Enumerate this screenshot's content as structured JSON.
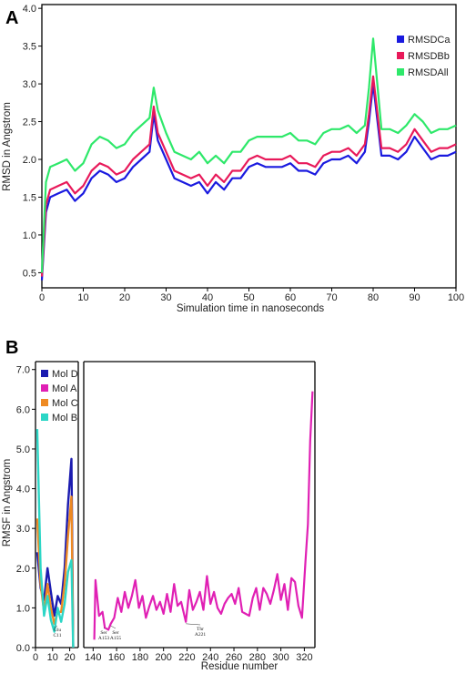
{
  "chart_data": [
    {
      "panel": "A",
      "type": "line",
      "xlabel": "Simulation time in nanoseconds",
      "ylabel": "RMSD in Angstrom",
      "xlim": [
        0,
        100
      ],
      "ylim": [
        0.3,
        4.05
      ],
      "xticks": [
        "0",
        "10",
        "20",
        "30",
        "40",
        "50",
        "60",
        "70",
        "80",
        "90",
        "100"
      ],
      "yticks": [
        "0.5",
        "1.0",
        "1.5",
        "2.0",
        "2.5",
        "3.0",
        "3.5",
        "4.0"
      ],
      "legend_position": "top-right",
      "series": [
        {
          "name": "RMSDCa",
          "color": "#1a1adf",
          "x": [
            0,
            1,
            2,
            4,
            6,
            8,
            10,
            12,
            14,
            16,
            18,
            20,
            22,
            24,
            26,
            27,
            28,
            30,
            32,
            34,
            36,
            38,
            40,
            42,
            44,
            46,
            48,
            50,
            52,
            54,
            56,
            58,
            60,
            62,
            64,
            66,
            68,
            70,
            72,
            74,
            76,
            78,
            79,
            80,
            82,
            84,
            86,
            88,
            90,
            92,
            94,
            96,
            98,
            100
          ],
          "y": [
            0.4,
            1.3,
            1.5,
            1.55,
            1.6,
            1.45,
            1.55,
            1.75,
            1.85,
            1.8,
            1.7,
            1.75,
            1.9,
            2.0,
            2.1,
            2.6,
            2.25,
            2.0,
            1.75,
            1.7,
            1.65,
            1.7,
            1.55,
            1.7,
            1.6,
            1.75,
            1.75,
            1.9,
            1.95,
            1.9,
            1.9,
            1.9,
            1.95,
            1.85,
            1.85,
            1.8,
            1.95,
            2.0,
            2.0,
            2.05,
            1.95,
            2.1,
            2.5,
            3.0,
            2.05,
            2.05,
            2.0,
            2.1,
            2.3,
            2.15,
            2.0,
            2.05,
            2.05,
            2.1
          ]
        },
        {
          "name": "RMSDBb",
          "color": "#e8195a",
          "x": [
            0,
            1,
            2,
            4,
            6,
            8,
            10,
            12,
            14,
            16,
            18,
            20,
            22,
            24,
            26,
            27,
            28,
            30,
            32,
            34,
            36,
            38,
            40,
            42,
            44,
            46,
            48,
            50,
            52,
            54,
            56,
            58,
            60,
            62,
            64,
            66,
            68,
            70,
            72,
            74,
            76,
            78,
            79,
            80,
            82,
            84,
            86,
            88,
            90,
            92,
            94,
            96,
            98,
            100
          ],
          "y": [
            0.45,
            1.4,
            1.6,
            1.65,
            1.7,
            1.55,
            1.65,
            1.85,
            1.95,
            1.9,
            1.8,
            1.85,
            2.0,
            2.1,
            2.2,
            2.7,
            2.35,
            2.1,
            1.85,
            1.8,
            1.75,
            1.8,
            1.65,
            1.8,
            1.7,
            1.85,
            1.85,
            2.0,
            2.05,
            2.0,
            2.0,
            2.0,
            2.05,
            1.95,
            1.95,
            1.9,
            2.05,
            2.1,
            2.1,
            2.15,
            2.05,
            2.2,
            2.6,
            3.1,
            2.15,
            2.15,
            2.1,
            2.2,
            2.4,
            2.25,
            2.1,
            2.15,
            2.15,
            2.2
          ]
        },
        {
          "name": "RMSDAll",
          "color": "#2ee86a",
          "x": [
            0,
            1,
            2,
            4,
            6,
            8,
            10,
            12,
            14,
            16,
            18,
            20,
            22,
            24,
            26,
            27,
            28,
            30,
            32,
            34,
            36,
            38,
            40,
            42,
            44,
            46,
            48,
            50,
            52,
            54,
            56,
            58,
            60,
            62,
            64,
            66,
            68,
            70,
            72,
            74,
            76,
            78,
            79,
            80,
            82,
            84,
            86,
            88,
            90,
            92,
            94,
            96,
            98,
            100
          ],
          "y": [
            0.5,
            1.7,
            1.9,
            1.95,
            2.0,
            1.85,
            1.95,
            2.2,
            2.3,
            2.25,
            2.15,
            2.2,
            2.35,
            2.45,
            2.55,
            2.95,
            2.65,
            2.35,
            2.1,
            2.05,
            2.0,
            2.1,
            1.95,
            2.05,
            1.95,
            2.1,
            2.1,
            2.25,
            2.3,
            2.3,
            2.3,
            2.3,
            2.35,
            2.25,
            2.25,
            2.2,
            2.35,
            2.4,
            2.4,
            2.45,
            2.35,
            2.45,
            2.95,
            3.6,
            2.4,
            2.4,
            2.35,
            2.45,
            2.6,
            2.5,
            2.35,
            2.4,
            2.4,
            2.45
          ]
        }
      ]
    },
    {
      "panel": "B",
      "type": "line",
      "xlabel": "Residue number",
      "ylabel": "RMSF in Angstrom",
      "ylim": [
        0,
        7.2
      ],
      "xticks_left": [
        "0",
        "10",
        "20"
      ],
      "xticks_right": [
        "140",
        "160",
        "180",
        "200",
        "220",
        "240",
        "260",
        "280",
        "300",
        "320"
      ],
      "yticks": [
        "0.0",
        "1.0",
        "2.0",
        "3.0",
        "4.0",
        "5.0",
        "6.0",
        "7.0"
      ],
      "legend_position": "top-left",
      "annotations": [
        {
          "text": "Glu C11",
          "line1": "Glu",
          "line2": "C11",
          "x": 11,
          "y": 0.5
        },
        {
          "text": "Ser A153",
          "line1": "Ser",
          "line2": "A153",
          "x": 150,
          "y": 0.5
        },
        {
          "text": "Ser A155",
          "line1": "Ser",
          "line2": "A155",
          "x": 155,
          "y": 0.55
        },
        {
          "text": "Thr A221",
          "line1": "Thr",
          "line2": "A221",
          "x": 219,
          "y": 0.6
        }
      ],
      "series": [
        {
          "name": "Mol D",
          "color": "#1b1bb0",
          "x": [
            1,
            3,
            5,
            7,
            9,
            11,
            13,
            15,
            17,
            19,
            21,
            22
          ],
          "y": [
            2.4,
            1.5,
            1.2,
            2.0,
            1.4,
            0.8,
            1.3,
            1.1,
            2.0,
            3.6,
            4.75,
            0.0
          ]
        },
        {
          "name": "Mol A",
          "color": "#e020b4",
          "x": [
            141,
            142,
            145,
            148,
            150,
            153,
            155,
            158,
            161,
            164,
            167,
            170,
            173,
            176,
            179,
            182,
            185,
            188,
            191,
            194,
            197,
            200,
            203,
            206,
            209,
            212,
            215,
            219,
            222,
            225,
            228,
            231,
            234,
            237,
            240,
            243,
            246,
            249,
            252,
            255,
            258,
            261,
            264,
            267,
            270,
            273,
            276,
            279,
            282,
            285,
            288,
            291,
            294,
            297,
            300,
            303,
            306,
            309,
            312,
            315,
            318,
            321,
            323,
            325,
            327
          ],
          "y": [
            0.2,
            1.7,
            0.8,
            0.9,
            0.5,
            0.45,
            0.6,
            0.75,
            1.25,
            0.9,
            1.4,
            1.0,
            1.3,
            1.7,
            1.0,
            1.3,
            0.75,
            1.05,
            1.3,
            0.95,
            1.15,
            0.85,
            1.35,
            0.9,
            1.6,
            1.05,
            1.15,
            0.65,
            1.45,
            0.95,
            1.15,
            1.4,
            0.95,
            1.8,
            1.1,
            1.4,
            1.0,
            0.85,
            1.1,
            1.25,
            1.35,
            1.1,
            1.5,
            0.9,
            0.85,
            0.8,
            1.25,
            1.5,
            0.95,
            1.5,
            1.35,
            1.1,
            1.45,
            1.85,
            1.2,
            1.6,
            0.95,
            1.75,
            1.65,
            1.05,
            0.75,
            2.2,
            3.1,
            5.2,
            6.45
          ]
        },
        {
          "name": "Mol C",
          "color": "#ee8a23",
          "x": [
            1,
            3,
            5,
            7,
            9,
            11,
            13,
            15,
            17,
            19,
            21,
            22
          ],
          "y": [
            3.25,
            1.6,
            0.9,
            1.6,
            1.0,
            0.6,
            0.9,
            0.9,
            1.6,
            2.8,
            3.8,
            0.0
          ]
        },
        {
          "name": "Mol B",
          "color": "#2cd6c6",
          "x": [
            1,
            3,
            5,
            7,
            9,
            11,
            13,
            15,
            17,
            19,
            21,
            22
          ],
          "y": [
            5.5,
            2.0,
            0.8,
            1.3,
            0.7,
            0.4,
            1.0,
            0.65,
            1.1,
            1.9,
            2.2,
            0.0
          ]
        }
      ]
    }
  ]
}
